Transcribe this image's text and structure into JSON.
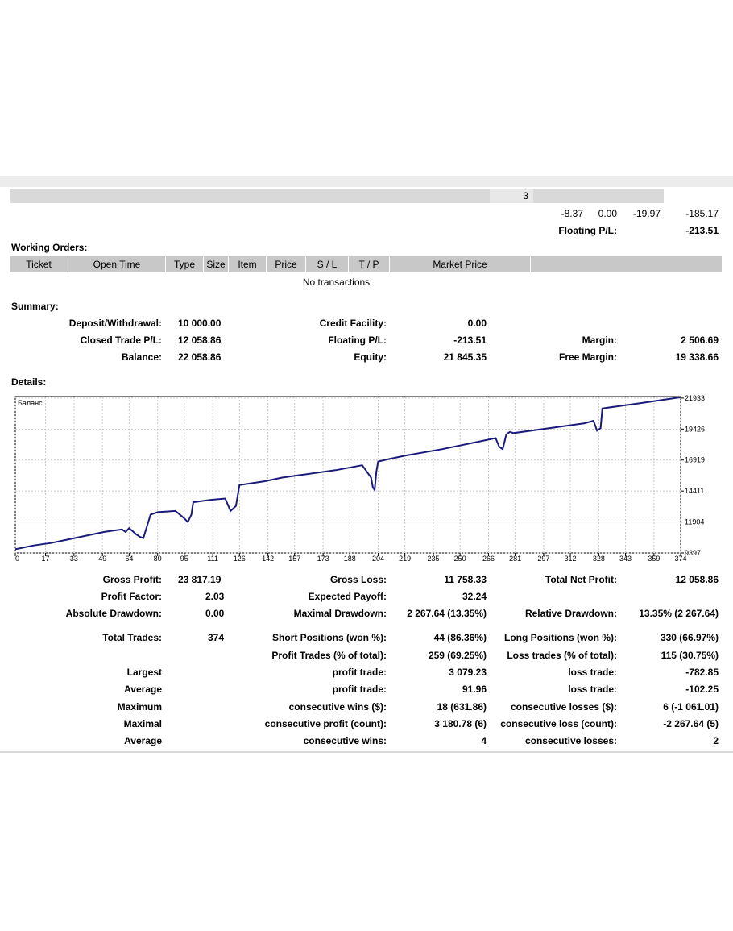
{
  "top": {
    "count": "3",
    "row_values": [
      "-8.37",
      "0.00",
      "-19.97",
      "-185.17"
    ],
    "floating_label": "Floating P/L:",
    "floating_value": "-213.51"
  },
  "working_orders": {
    "title": "Working Orders:",
    "columns": [
      "Ticket",
      "Open Time",
      "Type",
      "Size",
      "Item",
      "Price",
      "S / L",
      "T / P",
      "Market Price"
    ],
    "empty_text": "No transactions"
  },
  "summary": {
    "title": "Summary:",
    "deposit_label": "Deposit/Withdrawal:",
    "deposit_value": "10 000.00",
    "credit_label": "Credit Facility:",
    "credit_value": "0.00",
    "closed_label": "Closed Trade P/L:",
    "closed_value": "12 058.86",
    "floating_label": "Floating P/L:",
    "floating_value": "-213.51",
    "margin_label": "Margin:",
    "margin_value": "2 506.69",
    "balance_label": "Balance:",
    "balance_value": "22 058.86",
    "equity_label": "Equity:",
    "equity_value": "21 845.35",
    "free_margin_label": "Free Margin:",
    "free_margin_value": "19 338.66"
  },
  "details": {
    "title": "Details:"
  },
  "chart_data": {
    "type": "line",
    "title": "Баланс",
    "xlabel": "",
    "ylabel": "",
    "x_ticks": [
      0,
      17,
      33,
      49,
      64,
      80,
      95,
      111,
      126,
      142,
      157,
      173,
      188,
      204,
      219,
      235,
      250,
      266,
      281,
      297,
      312,
      328,
      343,
      359,
      374
    ],
    "y_ticks": [
      9397,
      11904,
      14411,
      16919,
      19426,
      21933
    ],
    "xlim": [
      0,
      374
    ],
    "ylim": [
      9397,
      22058
    ],
    "grid": true,
    "line_color": "#1a1a7a",
    "series": [
      {
        "x": [
          0,
          10,
          20,
          30,
          40,
          50,
          60,
          62,
          64,
          68,
          70,
          72,
          76,
          78,
          80,
          90,
          95,
          97,
          99,
          100,
          110,
          118,
          121,
          124,
          126,
          140,
          150,
          160,
          180,
          195,
          200,
          201,
          202,
          203,
          204,
          210,
          220,
          240,
          260,
          270,
          272,
          274,
          276,
          278,
          280,
          300,
          320,
          325,
          327,
          329,
          330,
          340,
          350,
          374
        ],
        "y": [
          9700,
          10000,
          10200,
          10500,
          10800,
          11100,
          11300,
          11100,
          11400,
          10900,
          10700,
          10600,
          12500,
          12600,
          12700,
          12800,
          12200,
          11900,
          12500,
          13500,
          13700,
          13800,
          12800,
          13200,
          14900,
          15200,
          15500,
          15700,
          16100,
          16500,
          15500,
          14700,
          14500,
          16000,
          16800,
          17000,
          17300,
          17800,
          18400,
          18700,
          18000,
          17800,
          19000,
          19200,
          19100,
          19500,
          19900,
          20100,
          19300,
          19500,
          21100,
          21300,
          21500,
          22000
        ]
      }
    ]
  },
  "stats": {
    "gross_profit_label": "Gross Profit:",
    "gross_profit_value": "23 817.19",
    "gross_loss_label": "Gross Loss:",
    "gross_loss_value": "11 758.33",
    "total_net_label": "Total Net Profit:",
    "total_net_value": "12 058.86",
    "profit_factor_label": "Profit Factor:",
    "profit_factor_value": "2.03",
    "expected_payoff_label": "Expected Payoff:",
    "expected_payoff_value": "32.24",
    "abs_dd_label": "Absolute Drawdown:",
    "abs_dd_value": "0.00",
    "max_dd_label": "Maximal Drawdown:",
    "max_dd_value": "2 267.64 (13.35%)",
    "rel_dd_label": "Relative Drawdown:",
    "rel_dd_value": "13.35% (2 267.64)",
    "total_trades_label": "Total Trades:",
    "total_trades_value": "374",
    "short_label": "Short Positions (won %):",
    "short_value": "44 (86.36%)",
    "long_label": "Long Positions (won %):",
    "long_value": "330 (66.97%)",
    "profit_trades_label": "Profit Trades (% of total):",
    "profit_trades_value": "259 (69.25%)",
    "loss_trades_label": "Loss trades (% of total):",
    "loss_trades_value": "115 (30.75%)",
    "largest_label": "Largest",
    "largest_profit_label": "profit trade:",
    "largest_profit_value": "3 079.23",
    "largest_loss_label": "loss trade:",
    "largest_loss_value": "-782.85",
    "average_label": "Average",
    "avg_profit_label": "profit trade:",
    "avg_profit_value": "91.96",
    "avg_loss_label": "loss trade:",
    "avg_loss_value": "-102.25",
    "maximum_label": "Maximum",
    "max_wins_label": "consecutive wins ($):",
    "max_wins_value": "18 (631.86)",
    "max_losses_label": "consecutive losses ($):",
    "max_losses_value": "6 (-1 061.01)",
    "maximal_label": "Maximal",
    "maximal_profit_label": "consecutive profit (count):",
    "maximal_profit_value": "3 180.78 (6)",
    "maximal_loss_label": "consecutive loss (count):",
    "maximal_loss_value": "-2 267.64 (5)",
    "average2_label": "Average",
    "avg_wins_label": "consecutive wins:",
    "avg_wins_value": "4",
    "avg_losses_label": "consecutive losses:",
    "avg_losses_value": "2"
  }
}
